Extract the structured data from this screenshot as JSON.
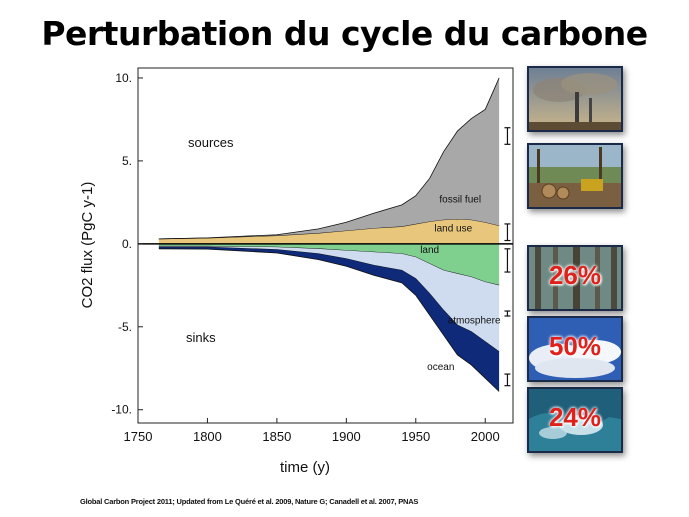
{
  "title": "Perturbation du cycle du carbone",
  "source_note": "Global Carbon Project 2011; Updated from Le Quéré et al. 2009, Nature G; Canadell et al. 2007, PNAS",
  "chart_data": {
    "type": "area",
    "xlabel": "time (y)",
    "ylabel": "CO2 flux (PgC y-1)",
    "xlim": [
      1750,
      2020
    ],
    "ylim": [
      -10.8,
      10.6
    ],
    "x_ticks": [
      1750,
      1800,
      1850,
      1900,
      1950,
      2000
    ],
    "y_ticks": [
      10,
      5,
      0,
      -5,
      -10
    ],
    "y_tick_labels": [
      "10.",
      "5.",
      "0.",
      "-5.",
      "-10."
    ],
    "annotations": [
      "sources",
      "sinks"
    ],
    "x": [
      1765,
      1800,
      1850,
      1880,
      1900,
      1920,
      1940,
      1950,
      1960,
      1970,
      1980,
      1990,
      2000,
      2010
    ],
    "series": [
      {
        "name": "land use",
        "values": [
          0.3,
          0.35,
          0.5,
          0.65,
          0.8,
          0.95,
          1.05,
          1.2,
          1.35,
          1.45,
          1.5,
          1.45,
          1.3,
          1.1
        ],
        "color": "#e8c77c"
      },
      {
        "name": "fossil fuel",
        "values": [
          0.0,
          0.01,
          0.05,
          0.25,
          0.5,
          0.9,
          1.3,
          1.7,
          2.6,
          4.1,
          5.3,
          6.1,
          6.8,
          8.9
        ],
        "color": "#a8a8a8"
      },
      {
        "name": "land",
        "values": [
          -0.15,
          -0.15,
          -0.2,
          -0.3,
          -0.4,
          -0.5,
          -0.6,
          -0.8,
          -1.2,
          -1.6,
          -1.8,
          -2.0,
          -2.3,
          -2.5
        ],
        "color": "#7fcf8f"
      },
      {
        "name": "atmosphere",
        "values": [
          -0.05,
          -0.05,
          -0.15,
          -0.3,
          -0.5,
          -0.8,
          -1.0,
          -1.3,
          -1.8,
          -2.4,
          -3.1,
          -3.3,
          -3.6,
          -4.0
        ],
        "color": "#cfdcef"
      },
      {
        "name": "ocean",
        "values": [
          -0.1,
          -0.12,
          -0.2,
          -0.35,
          -0.45,
          -0.6,
          -0.75,
          -1.0,
          -1.3,
          -1.5,
          -1.8,
          -2.0,
          -2.2,
          -2.4
        ],
        "color": "#0e2a78"
      }
    ],
    "uncertainty_bars": [
      {
        "x": 2016,
        "y": 6.5,
        "err": 0.5
      },
      {
        "x": 2016,
        "y": 0.7,
        "err": 0.5
      },
      {
        "x": 2016,
        "y": -1.0,
        "err": 0.7
      },
      {
        "x": 2016,
        "y": -4.2,
        "err": 0.15
      },
      {
        "x": 2016,
        "y": -8.2,
        "err": 0.35
      }
    ]
  },
  "side_panels": [
    {
      "name": "smokestacks-photo",
      "label": ""
    },
    {
      "name": "logging-photo",
      "label": ""
    },
    {
      "name": "forest-photo",
      "label": "26%"
    },
    {
      "name": "sky-photo",
      "label": "50%"
    },
    {
      "name": "ocean-photo",
      "label": "24%"
    }
  ]
}
